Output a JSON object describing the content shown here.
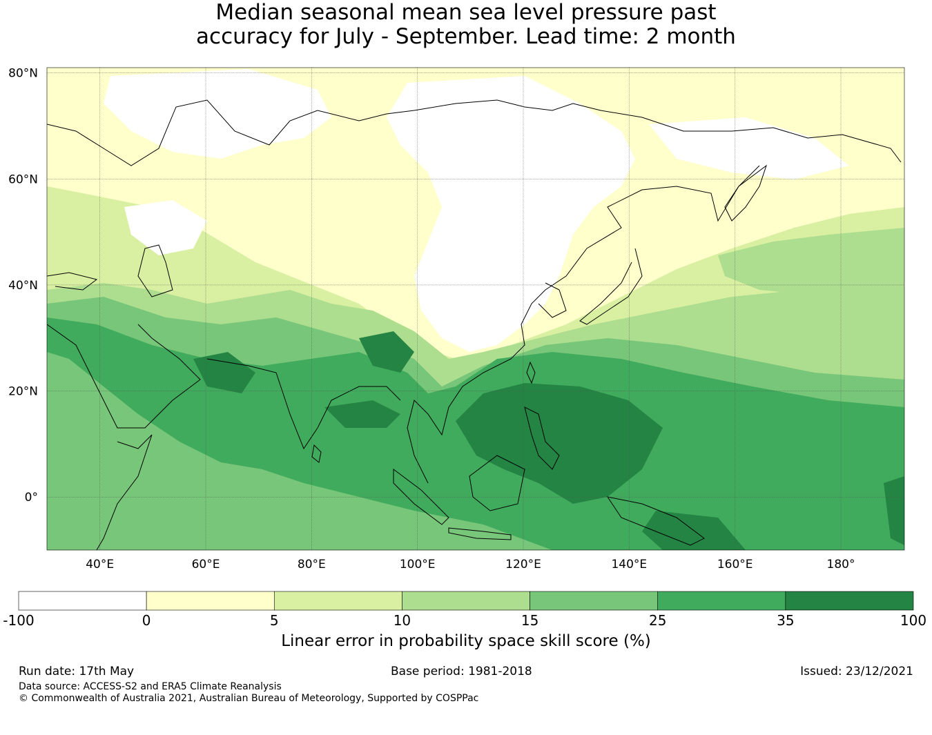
{
  "title": {
    "line1": "Median seasonal mean sea level pressure past",
    "line2": "accuracy for July - September. Lead time: 2 month"
  },
  "map": {
    "lon_range": [
      30,
      192
    ],
    "lat_range": [
      -10,
      81
    ],
    "lat_ticks": [
      {
        "value": 80,
        "label": "80°N"
      },
      {
        "value": 60,
        "label": "60°N"
      },
      {
        "value": 40,
        "label": "40°N"
      },
      {
        "value": 20,
        "label": "20°N"
      },
      {
        "value": 0,
        "label": "0°"
      }
    ],
    "lon_ticks": [
      {
        "value": 40,
        "label": "40°E"
      },
      {
        "value": 60,
        "label": "60°E"
      },
      {
        "value": 80,
        "label": "80°E"
      },
      {
        "value": 100,
        "label": "100°E"
      },
      {
        "value": 120,
        "label": "120°E"
      },
      {
        "value": 140,
        "label": "140°E"
      },
      {
        "value": 160,
        "label": "160°E"
      },
      {
        "value": 180,
        "label": "180°"
      }
    ],
    "grid": true
  },
  "colorbar": {
    "label": "Linear error in probability space skill score (%)",
    "bins": [
      {
        "from": -100,
        "to": 0,
        "color": "#ffffff"
      },
      {
        "from": 0,
        "to": 5,
        "color": "#ffffcc"
      },
      {
        "from": 5,
        "to": 10,
        "color": "#d9f0a3"
      },
      {
        "from": 10,
        "to": 15,
        "color": "#addd8e"
      },
      {
        "from": 15,
        "to": 25,
        "color": "#78c679"
      },
      {
        "from": 25,
        "to": 35,
        "color": "#41ab5d"
      },
      {
        "from": 35,
        "to": 100,
        "color": "#238443"
      }
    ],
    "tick_labels": [
      "-100",
      "0",
      "5",
      "10",
      "15",
      "25",
      "35",
      "100"
    ]
  },
  "footer": {
    "run_date": "Run date: 17th May",
    "base_period": "Base period: 1981-2018",
    "issued": "Issued: 23/12/2021",
    "data_source": "Data source: ACCESS-S2 and ERA5 Climate Reanalysis",
    "copyright": "© Commonwealth of Australia 2021, Australian Bureau of Meteorology, Supported by COSPPac"
  }
}
